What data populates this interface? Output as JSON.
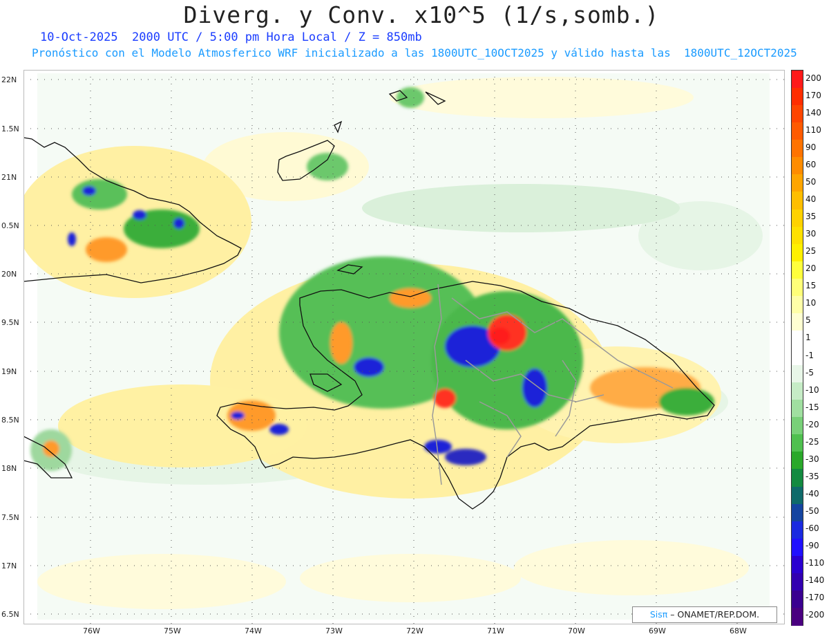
{
  "title": "Diverg. y Conv. x10^5 (1/s,somb.)",
  "subtitle_line1": "10-Oct-2025  2000 UTC / 5:00 pm Hora Local / Z = 850mb",
  "subtitle_line2": "Pronóstico con el Modelo Atmosferico WRF inicializado a las 1800UTC_10OCT2025 y válido hasta las  1800UTC_12OCT2025",
  "lat_labels": [
    "22N",
    "1.5N",
    "21N",
    "0.5N",
    "20N",
    "9.5N",
    "19N",
    "8.5N",
    "18N",
    "7.5N",
    "17N",
    "6.5N"
  ],
  "lon_labels": [
    "76W",
    "75W",
    "74W",
    "73W",
    "72W",
    "71W",
    "70W",
    "69W",
    "68W"
  ],
  "colorbar": {
    "labels": [
      "200",
      "170",
      "140",
      "110",
      "90",
      "60",
      "50",
      "40",
      "35",
      "30",
      "25",
      "20",
      "15",
      "10",
      "5",
      "1",
      "-1",
      "-5",
      "-10",
      "-15",
      "-20",
      "-25",
      "-30",
      "-35",
      "-40",
      "-50",
      "-60",
      "-90",
      "-110",
      "-140",
      "-170",
      "-200"
    ],
    "colors": [
      "#ff1a1a",
      "#ff2d00",
      "#ff4500",
      "#ff5a00",
      "#ff7300",
      "#ff8c00",
      "#ffa500",
      "#ffbe00",
      "#ffd200",
      "#ffe100",
      "#fff000",
      "#ffff3c",
      "#ffff78",
      "#ffffa8",
      "#ffffd2",
      "#ffffff",
      "#ffffff",
      "#e8f6e8",
      "#c6ecc6",
      "#a0dfa0",
      "#78d078",
      "#4fc04f",
      "#2aa82a",
      "#138a40",
      "#0f6a6a",
      "#1544a0",
      "#1a2ae0",
      "#2010ff",
      "#2a00d0",
      "#3200b0",
      "#3a0090",
      "#4a0080"
    ]
  },
  "credit": {
    "brand": "Sisπ",
    "text": "– ONAMET/REP.DOM."
  }
}
